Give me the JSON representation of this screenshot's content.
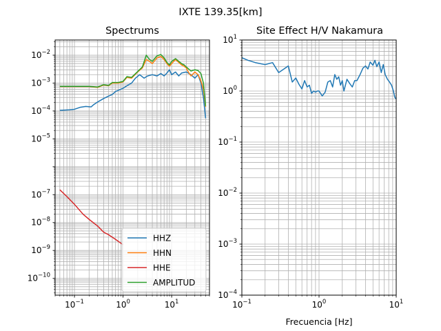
{
  "suptitle": "IXTE 139.35[km]",
  "chart_data": [
    {
      "type": "line",
      "title": "Spectrums",
      "xlabel": "",
      "ylabel": "",
      "xscale": "log",
      "yscale": "log",
      "xlim": [
        0.04,
        60
      ],
      "ylim": [
        2.5e-11,
        0.035
      ],
      "grid": true,
      "grid_minor": true,
      "legend_position": "lower-right",
      "x_ticks": [
        {
          "value": 0.1,
          "base": "10",
          "exp": "−1"
        },
        {
          "value": 1,
          "base": "10",
          "exp": "0"
        },
        {
          "value": 10,
          "base": "10",
          "exp": "1"
        }
      ],
      "y_ticks": [
        {
          "value": 1e-10,
          "base": "10",
          "exp": "−10"
        },
        {
          "value": 1e-09,
          "base": "10",
          "exp": "−9"
        },
        {
          "value": 1e-08,
          "base": "10",
          "exp": "−8"
        },
        {
          "value": 1e-07,
          "base": "10",
          "exp": "−7"
        },
        {
          "value": 1e-05,
          "base": "10",
          "exp": "−5"
        },
        {
          "value": 0.0001,
          "base": "10",
          "exp": "−4"
        },
        {
          "value": 0.001,
          "base": "10",
          "exp": "−3"
        },
        {
          "value": 0.01,
          "base": "10",
          "exp": "−2"
        }
      ],
      "series": [
        {
          "name": "HHZ",
          "color": "#1f77b4",
          "points": [
            [
              0.05,
              0.000105
            ],
            [
              0.08,
              0.00011
            ],
            [
              0.1,
              0.000115
            ],
            [
              0.13,
              0.000135
            ],
            [
              0.17,
              0.000145
            ],
            [
              0.22,
              0.00014
            ],
            [
              0.25,
              0.00017
            ],
            [
              0.3,
              0.00021
            ],
            [
              0.4,
              0.00028
            ],
            [
              0.5,
              0.00034
            ],
            [
              0.6,
              0.00039
            ],
            [
              0.7,
              0.0005
            ],
            [
              0.8,
              0.00055
            ],
            [
              1.0,
              0.00065
            ],
            [
              1.2,
              0.0008
            ],
            [
              1.5,
              0.001
            ],
            [
              1.8,
              0.0015
            ],
            [
              2.2,
              0.002
            ],
            [
              2.7,
              0.0015
            ],
            [
              3.2,
              0.0018
            ],
            [
              4,
              0.002
            ],
            [
              5,
              0.0018
            ],
            [
              6,
              0.0022
            ],
            [
              7,
              0.0018
            ],
            [
              8,
              0.0023
            ],
            [
              9,
              0.003
            ],
            [
              10,
              0.002
            ],
            [
              12,
              0.0025
            ],
            [
              14,
              0.0018
            ],
            [
              16,
              0.0023
            ],
            [
              20,
              0.0025
            ],
            [
              25,
              0.002
            ],
            [
              30,
              0.0015
            ],
            [
              35,
              0.002
            ],
            [
              40,
              0.001
            ],
            [
              45,
              0.0003
            ],
            [
              50,
              5.5e-05
            ]
          ]
        },
        {
          "name": "HHN",
          "color": "#ff7f0e",
          "points": [
            [
              0.05,
              0.00075
            ],
            [
              0.1,
              0.00075
            ],
            [
              0.2,
              0.00075
            ],
            [
              0.3,
              0.0007
            ],
            [
              0.4,
              0.00085
            ],
            [
              0.5,
              0.0008
            ],
            [
              0.6,
              0.001
            ],
            [
              0.8,
              0.001
            ],
            [
              1.0,
              0.0011
            ],
            [
              1.2,
              0.0016
            ],
            [
              1.5,
              0.0015
            ],
            [
              2,
              0.0025
            ],
            [
              2.5,
              0.0035
            ],
            [
              3,
              0.007
            ],
            [
              3.5,
              0.006
            ],
            [
              4,
              0.005
            ],
            [
              5,
              0.008
            ],
            [
              6,
              0.009
            ],
            [
              7,
              0.007
            ],
            [
              8,
              0.005
            ],
            [
              9,
              0.004
            ],
            [
              10,
              0.005
            ],
            [
              12,
              0.007
            ],
            [
              14,
              0.0055
            ],
            [
              16,
              0.0045
            ],
            [
              18,
              0.004
            ],
            [
              20,
              0.0035
            ],
            [
              22,
              0.0025
            ],
            [
              25,
              0.0018
            ],
            [
              30,
              0.0025
            ],
            [
              35,
              0.002
            ],
            [
              40,
              0.0012
            ],
            [
              45,
              0.0006
            ],
            [
              50,
              0.00014
            ]
          ]
        },
        {
          "name": "HHE",
          "color": "#d62728",
          "points": [
            [
              0.05,
              1.5e-07
            ],
            [
              0.07,
              8.5e-08
            ],
            [
              0.1,
              4.5e-08
            ],
            [
              0.15,
              2e-08
            ],
            [
              0.2,
              1.3e-08
            ],
            [
              0.3,
              7.5e-09
            ],
            [
              0.4,
              4.5e-09
            ],
            [
              0.5,
              3.7e-09
            ],
            [
              0.7,
              2.5e-09
            ],
            [
              1.0,
              1.6e-09
            ]
          ]
        },
        {
          "name": "AMPLITUD",
          "color": "#2ca02c",
          "points": [
            [
              0.05,
              0.00076
            ],
            [
              0.1,
              0.00076
            ],
            [
              0.2,
              0.00076
            ],
            [
              0.3,
              0.00072
            ],
            [
              0.4,
              0.00088
            ],
            [
              0.5,
              0.00082
            ],
            [
              0.6,
              0.00105
            ],
            [
              0.8,
              0.00105
            ],
            [
              1.0,
              0.00115
            ],
            [
              1.2,
              0.0017
            ],
            [
              1.5,
              0.0016
            ],
            [
              2,
              0.0026
            ],
            [
              2.5,
              0.0038
            ],
            [
              3,
              0.01
            ],
            [
              3.5,
              0.007
            ],
            [
              4,
              0.006
            ],
            [
              5,
              0.0095
            ],
            [
              6,
              0.0105
            ],
            [
              7,
              0.008
            ],
            [
              8,
              0.0055
            ],
            [
              9,
              0.0045
            ],
            [
              10,
              0.006
            ],
            [
              12,
              0.0075
            ],
            [
              14,
              0.006
            ],
            [
              16,
              0.005
            ],
            [
              18,
              0.0045
            ],
            [
              20,
              0.0038
            ],
            [
              25,
              0.0027
            ],
            [
              30,
              0.003
            ],
            [
              35,
              0.0028
            ],
            [
              40,
              0.0022
            ],
            [
              45,
              0.001
            ],
            [
              50,
              0.00015
            ]
          ]
        }
      ]
    },
    {
      "type": "line",
      "title": "Site Effect H/V Nakamura",
      "xlabel": "Frecuencia [Hz]",
      "ylabel": "",
      "xscale": "log",
      "yscale": "log",
      "xlim": [
        0.1,
        10
      ],
      "ylim": [
        0.0001,
        10
      ],
      "grid": true,
      "grid_minor": true,
      "x_ticks": [
        {
          "value": 0.1,
          "base": "10",
          "exp": "−1"
        },
        {
          "value": 1,
          "base": "10",
          "exp": "0"
        },
        {
          "value": 10,
          "base": "10",
          "exp": "1"
        }
      ],
      "y_ticks": [
        {
          "value": 0.0001,
          "base": "10",
          "exp": "−4"
        },
        {
          "value": 0.001,
          "base": "10",
          "exp": "−3"
        },
        {
          "value": 0.01,
          "base": "10",
          "exp": "−2"
        },
        {
          "value": 0.1,
          "base": "10",
          "exp": "−1"
        },
        {
          "value": 1,
          "base": "10",
          "exp": "0"
        },
        {
          "value": 10,
          "base": "10",
          "exp": "1"
        }
      ],
      "series": [
        {
          "name": "",
          "color": "#1f77b4",
          "points": [
            [
              0.1,
              4.5
            ],
            [
              0.12,
              4.0
            ],
            [
              0.15,
              3.6
            ],
            [
              0.2,
              3.3
            ],
            [
              0.25,
              3.6
            ],
            [
              0.3,
              2.3
            ],
            [
              0.35,
              2.7
            ],
            [
              0.4,
              3.1
            ],
            [
              0.45,
              1.5
            ],
            [
              0.5,
              1.8
            ],
            [
              0.55,
              1.35
            ],
            [
              0.6,
              1.1
            ],
            [
              0.65,
              1.6
            ],
            [
              0.7,
              1.2
            ],
            [
              0.75,
              1.3
            ],
            [
              0.8,
              0.9
            ],
            [
              0.85,
              1.0
            ],
            [
              0.9,
              0.95
            ],
            [
              0.95,
              1.0
            ],
            [
              1.0,
              1.0
            ],
            [
              1.1,
              0.8
            ],
            [
              1.2,
              0.95
            ],
            [
              1.3,
              1.5
            ],
            [
              1.4,
              1.6
            ],
            [
              1.5,
              1.2
            ],
            [
              1.6,
              2.1
            ],
            [
              1.7,
              1.7
            ],
            [
              1.8,
              1.9
            ],
            [
              1.9,
              1.3
            ],
            [
              2.0,
              1.6
            ],
            [
              2.1,
              1.0
            ],
            [
              2.3,
              1.7
            ],
            [
              2.5,
              1.4
            ],
            [
              2.7,
              1.2
            ],
            [
              2.9,
              1.6
            ],
            [
              3.1,
              1.6
            ],
            [
              3.4,
              2.1
            ],
            [
              3.7,
              2.8
            ],
            [
              4.0,
              3.1
            ],
            [
              4.3,
              2.7
            ],
            [
              4.6,
              3.7
            ],
            [
              5.0,
              3.2
            ],
            [
              5.3,
              4.0
            ],
            [
              5.6,
              3.0
            ],
            [
              6.0,
              3.7
            ],
            [
              6.4,
              2.3
            ],
            [
              6.8,
              3.3
            ],
            [
              7.2,
              2.1
            ],
            [
              7.7,
              1.7
            ],
            [
              8.2,
              1.5
            ],
            [
              8.7,
              1.3
            ],
            [
              9.2,
              1.0
            ],
            [
              9.6,
              0.75
            ],
            [
              10.0,
              0.7
            ]
          ]
        }
      ]
    }
  ]
}
